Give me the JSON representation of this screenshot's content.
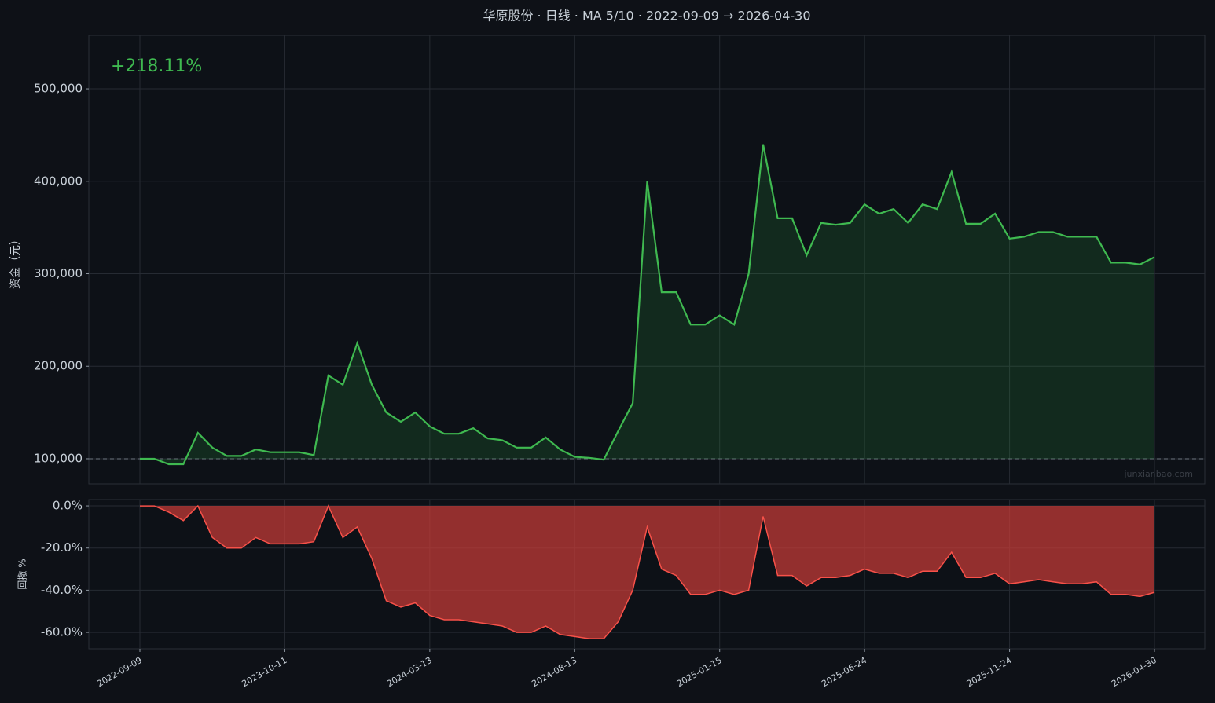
{
  "chart_data": [
    {
      "type": "area",
      "title": "华原股份 · 日线 · MA 5/10 · 2022-09-09 → 2026-04-30",
      "annotation": "+218.11%",
      "ylabel": "资金（元）",
      "watermark": "junxianbao.com",
      "color": "#3fb950",
      "fill": "rgba(46,160,67,0.18)",
      "grid": true,
      "reference_line": 100000,
      "values": [
        100000,
        100000,
        94000,
        94000,
        128000,
        112000,
        103000,
        103000,
        110000,
        107000,
        107000,
        107000,
        104000,
        190000,
        180000,
        225000,
        180000,
        150000,
        140000,
        150000,
        135000,
        127000,
        127000,
        133000,
        122000,
        120000,
        112000,
        112000,
        123000,
        110000,
        102000,
        101000,
        99000,
        130000,
        160000,
        400000,
        280000,
        280000,
        245000,
        245000,
        255000,
        245000,
        300000,
        440000,
        360000,
        360000,
        320000,
        355000,
        353000,
        355000,
        375000,
        365000,
        370000,
        355000,
        375000,
        370000,
        410000,
        354000,
        354000,
        365000,
        338000,
        340000,
        345000,
        345000,
        340000,
        340000,
        340000,
        312000,
        312000,
        310000,
        318000
      ],
      "ylim": [
        72800,
        557800
      ],
      "yticks": [
        {
          "value": 100000,
          "label": "100,000"
        },
        {
          "value": 200000,
          "label": "200,000"
        },
        {
          "value": 300000,
          "label": "300,000"
        },
        {
          "value": 400000,
          "label": "400,000"
        },
        {
          "value": 500000,
          "label": "500,000"
        }
      ]
    },
    {
      "type": "area",
      "ylabel": "回撤 %",
      "color": "#f85149",
      "fill": "rgba(200,60,55,0.72)",
      "grid": true,
      "categories": [
        "2022-09-09",
        null,
        null,
        null,
        null,
        null,
        null,
        null,
        null,
        null,
        "2023-10-11",
        null,
        null,
        null,
        null,
        null,
        null,
        null,
        null,
        null,
        "2024-03-13",
        null,
        null,
        null,
        null,
        null,
        null,
        null,
        null,
        null,
        "2024-08-13",
        null,
        null,
        null,
        null,
        null,
        null,
        null,
        null,
        null,
        "2025-01-15",
        null,
        null,
        null,
        null,
        null,
        null,
        null,
        null,
        null,
        "2025-06-24",
        null,
        null,
        null,
        null,
        null,
        null,
        null,
        null,
        null,
        "2025-11-24",
        null,
        null,
        null,
        null,
        null,
        null,
        null,
        null,
        null,
        "2026-04-30"
      ],
      "values": [
        0,
        0,
        -3,
        -7,
        0,
        -15,
        -20,
        -20,
        -15,
        -18,
        -18,
        -18,
        -17,
        0,
        -15,
        -10,
        -25,
        -45,
        -48,
        -46,
        -52,
        -54,
        -54,
        -55,
        -56,
        -57,
        -60,
        -60,
        -57,
        -61,
        -62,
        -63,
        -63,
        -55,
        -40,
        -10,
        -30,
        -33,
        -42,
        -42,
        -40,
        -42,
        -40,
        -5,
        -33,
        -33,
        -38,
        -34,
        -34,
        -33,
        -30,
        -32,
        -32,
        -34,
        -31,
        -31,
        -22,
        -34,
        -34,
        -32,
        -37,
        -36,
        -35,
        -36,
        -37,
        -37,
        -36,
        -42,
        -42,
        -43,
        -41
      ],
      "ylim": [
        -67.8,
        3
      ],
      "yticks": [
        {
          "value": 0,
          "label": "0.0%"
        },
        {
          "value": -20,
          "label": "-20.0%"
        },
        {
          "value": -40,
          "label": "-40.0%"
        },
        {
          "value": -60,
          "label": "-60.0%"
        }
      ]
    }
  ]
}
